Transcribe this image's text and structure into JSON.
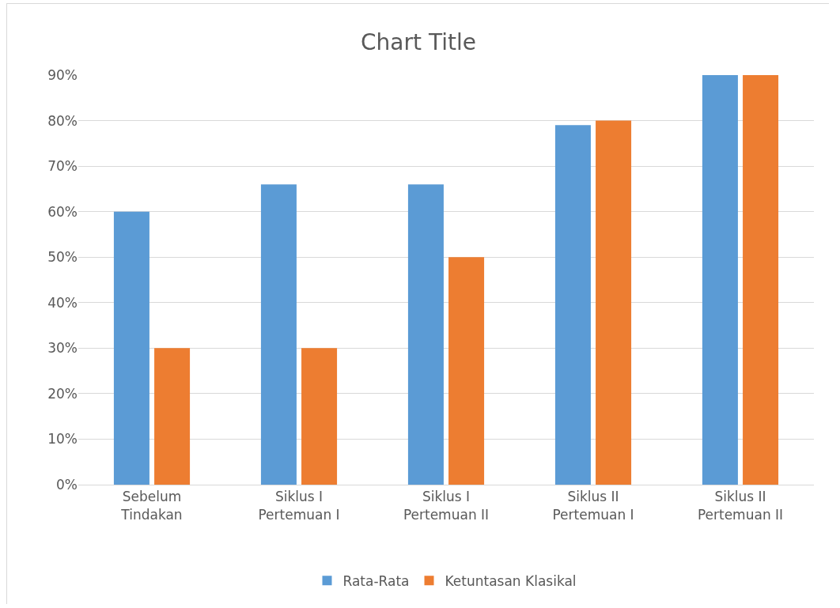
{
  "chart_data": {
    "type": "bar",
    "title": "Chart Title",
    "categories": [
      "Sebelum Tindakan",
      "Siklus I Pertemuan I",
      "Siklus I Pertemuan II",
      "Siklus II Pertemuan I",
      "Siklus II Pertemuan II"
    ],
    "series": [
      {
        "name": "Rata-Rata",
        "color": "#5b9bd5",
        "values": [
          60,
          66,
          66,
          79,
          90
        ]
      },
      {
        "name": "Ketuntasan Klasikal",
        "color": "#ed7d31",
        "values": [
          30,
          30,
          50,
          80,
          90
        ]
      }
    ],
    "ylim": [
      0,
      90
    ],
    "yticks": [
      {
        "value": 0,
        "label": "0%"
      },
      {
        "value": 10,
        "label": "10%"
      },
      {
        "value": 20,
        "label": "20%"
      },
      {
        "value": 30,
        "label": "30%"
      },
      {
        "value": 40,
        "label": "40%"
      },
      {
        "value": 50,
        "label": "50%"
      },
      {
        "value": 60,
        "label": "60%"
      },
      {
        "value": 70,
        "label": "70%"
      },
      {
        "value": 80,
        "label": "80%"
      },
      {
        "value": 90,
        "label": "90%"
      }
    ],
    "grid": "y",
    "legend": "bottom"
  }
}
